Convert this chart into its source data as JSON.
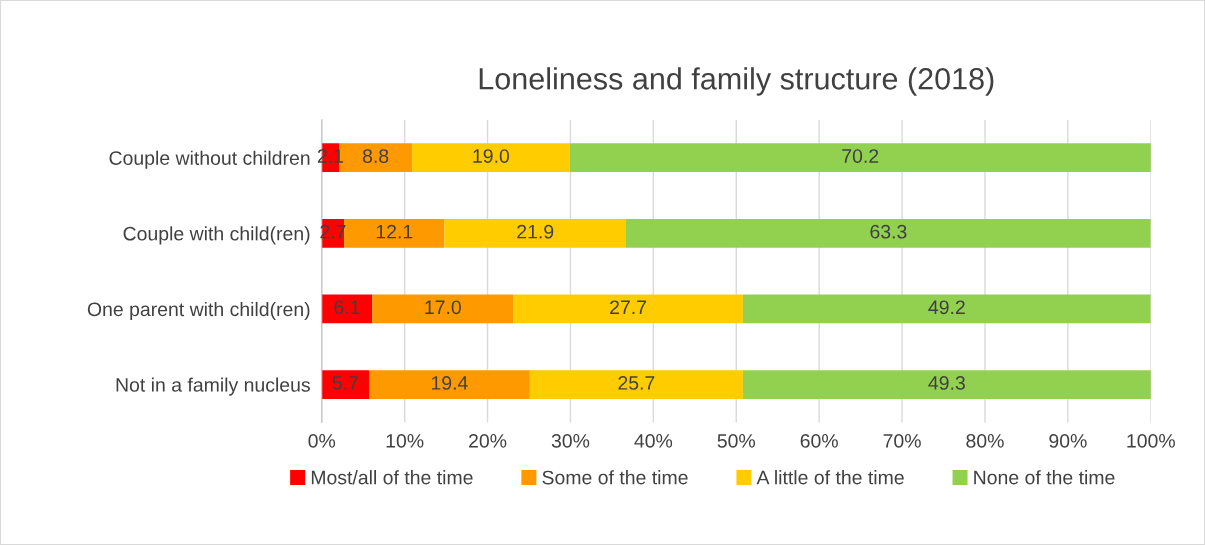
{
  "chart_data": {
    "type": "bar",
    "orientation": "horizontal",
    "stacked": true,
    "title": "Loneliness and family structure (2018)",
    "categories": [
      "Couple without children",
      "Couple with child(ren)",
      "One parent with child(ren)",
      "Not in a family nucleus"
    ],
    "series": [
      {
        "name": "Most/all of the time",
        "color": "#ff0000",
        "values": [
          2.1,
          2.7,
          6.1,
          5.7
        ],
        "value_labels": [
          "2.1",
          "2.7",
          "6.1",
          "5.7"
        ]
      },
      {
        "name": "Some of the time",
        "color": "#ff9900",
        "values": [
          8.8,
          12.1,
          17.0,
          19.4
        ],
        "value_labels": [
          "8.8",
          "12.1",
          "17.0",
          "19.4"
        ]
      },
      {
        "name": "A little of the time",
        "color": "#ffcc00",
        "values": [
          19.0,
          21.9,
          27.7,
          25.7
        ],
        "value_labels": [
          "19.0",
          "21.9",
          "27.7",
          "25.7"
        ]
      },
      {
        "name": "None of the time",
        "color": "#92d050",
        "values": [
          70.2,
          63.3,
          49.2,
          49.3
        ],
        "value_labels": [
          "70.2",
          "63.3",
          "49.2",
          "49.3"
        ]
      }
    ],
    "xlim": [
      0,
      100
    ],
    "xticks": [
      {
        "value": 0,
        "label": "0%"
      },
      {
        "value": 10,
        "label": "10%"
      },
      {
        "value": 20,
        "label": "20%"
      },
      {
        "value": 30,
        "label": "30%"
      },
      {
        "value": 40,
        "label": "40%"
      },
      {
        "value": 50,
        "label": "50%"
      },
      {
        "value": 60,
        "label": "60%"
      },
      {
        "value": 70,
        "label": "70%"
      },
      {
        "value": 80,
        "label": "80%"
      },
      {
        "value": 90,
        "label": "90%"
      },
      {
        "value": 100,
        "label": "100%"
      }
    ],
    "grid": "x",
    "legend": "bottom"
  }
}
